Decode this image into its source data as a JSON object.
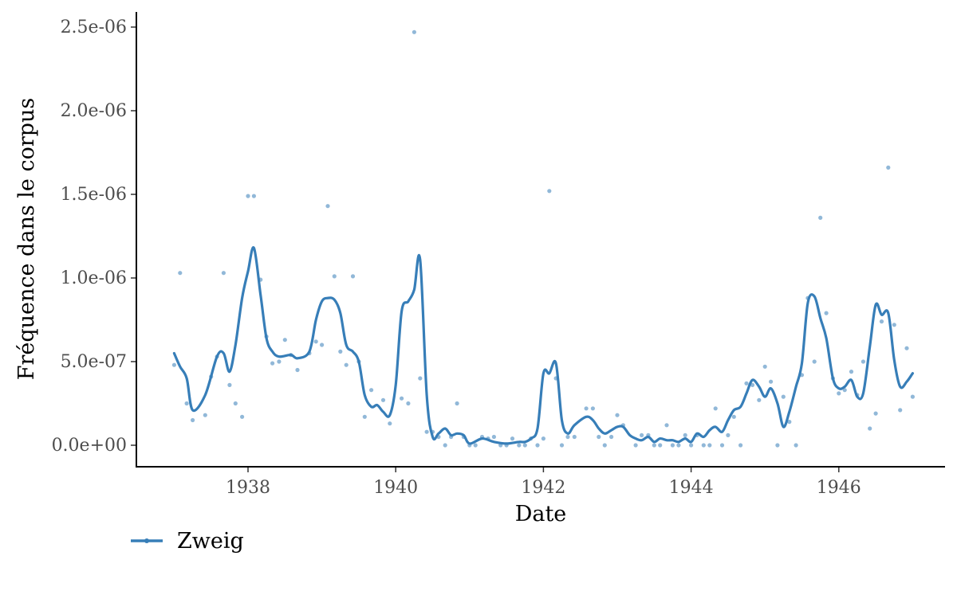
{
  "chart_data": {
    "type": "line",
    "xlabel": "Date",
    "ylabel": "Fréquence dans le corpus",
    "x_ticks": [
      1938,
      1940,
      1942,
      1944,
      1946
    ],
    "y_ticks": [
      0,
      5e-07,
      1e-06,
      1.5e-06,
      2e-06,
      2.5e-06
    ],
    "y_tick_labels": [
      "0.0e+00",
      "5.0e-07",
      "1.0e-06",
      "1.5e-06",
      "2.0e-06",
      "2.5e-06"
    ],
    "xlim": [
      1936.85,
      1947.1
    ],
    "ylim": [
      -1.25e-07,
      2.6e-06
    ],
    "grid": false,
    "legend_position": "bottom-left",
    "series": [
      {
        "name": "Zweig",
        "color": "#377eb8",
        "points": [
          [
            1937.0,
            4.8e-07
          ],
          [
            1937.08,
            1.03e-06
          ],
          [
            1937.17,
            2.5e-07
          ],
          [
            1937.25,
            1.5e-07
          ],
          [
            1937.42,
            1.8e-07
          ],
          [
            1937.5,
            4.1e-07
          ],
          [
            1937.58,
            5.3e-07
          ],
          [
            1937.67,
            1.03e-06
          ],
          [
            1937.75,
            3.6e-07
          ],
          [
            1937.83,
            2.5e-07
          ],
          [
            1937.92,
            1.7e-07
          ],
          [
            1938.0,
            1.49e-06
          ],
          [
            1938.08,
            1.49e-06
          ],
          [
            1938.17,
            9.9e-07
          ],
          [
            1938.25,
            6.5e-07
          ],
          [
            1938.33,
            4.9e-07
          ],
          [
            1938.42,
            5e-07
          ],
          [
            1938.5,
            6.3e-07
          ],
          [
            1938.58,
            5.4e-07
          ],
          [
            1938.67,
            4.5e-07
          ],
          [
            1938.83,
            5.5e-07
          ],
          [
            1938.92,
            6.2e-07
          ],
          [
            1939.0,
            6e-07
          ],
          [
            1939.08,
            1.43e-06
          ],
          [
            1939.17,
            1.01e-06
          ],
          [
            1939.25,
            5.6e-07
          ],
          [
            1939.33,
            4.8e-07
          ],
          [
            1939.42,
            1.01e-06
          ],
          [
            1939.5,
            5e-07
          ],
          [
            1939.58,
            1.7e-07
          ],
          [
            1939.67,
            3.3e-07
          ],
          [
            1939.83,
            2.7e-07
          ],
          [
            1939.92,
            1.3e-07
          ],
          [
            1940.08,
            2.8e-07
          ],
          [
            1940.17,
            2.5e-07
          ],
          [
            1940.25,
            2.47e-06
          ],
          [
            1940.33,
            4e-07
          ],
          [
            1940.42,
            8e-08
          ],
          [
            1940.5,
            8e-08
          ],
          [
            1940.58,
            5e-08
          ],
          [
            1940.67,
            0.0
          ],
          [
            1940.75,
            5e-08
          ],
          [
            1940.83,
            2.5e-07
          ],
          [
            1940.92,
            5e-08
          ],
          [
            1941.0,
            0.0
          ],
          [
            1941.08,
            0.0
          ],
          [
            1941.17,
            5e-08
          ],
          [
            1941.25,
            4e-08
          ],
          [
            1941.33,
            5e-08
          ],
          [
            1941.42,
            0.0
          ],
          [
            1941.5,
            0.0
          ],
          [
            1941.58,
            4e-08
          ],
          [
            1941.67,
            0.0
          ],
          [
            1941.75,
            0.0
          ],
          [
            1941.83,
            4e-08
          ],
          [
            1941.92,
            0.0
          ],
          [
            1942.0,
            4e-08
          ],
          [
            1942.08,
            1.52e-06
          ],
          [
            1942.17,
            4e-07
          ],
          [
            1942.25,
            0.0
          ],
          [
            1942.33,
            5e-08
          ],
          [
            1942.42,
            5e-08
          ],
          [
            1942.58,
            2.2e-07
          ],
          [
            1942.67,
            2.2e-07
          ],
          [
            1942.75,
            5e-08
          ],
          [
            1942.83,
            0.0
          ],
          [
            1942.92,
            5e-08
          ],
          [
            1943.0,
            1.8e-07
          ],
          [
            1943.08,
            1.2e-07
          ],
          [
            1943.25,
            0.0
          ],
          [
            1943.33,
            6e-08
          ],
          [
            1943.42,
            6e-08
          ],
          [
            1943.5,
            0.0
          ],
          [
            1943.58,
            0.0
          ],
          [
            1943.67,
            1.2e-07
          ],
          [
            1943.75,
            0.0
          ],
          [
            1943.83,
            0.0
          ],
          [
            1943.92,
            6e-08
          ],
          [
            1944.0,
            0.0
          ],
          [
            1944.08,
            6e-08
          ],
          [
            1944.17,
            0.0
          ],
          [
            1944.25,
            0.0
          ],
          [
            1944.33,
            2.2e-07
          ],
          [
            1944.42,
            0.0
          ],
          [
            1944.5,
            6e-08
          ],
          [
            1944.58,
            1.7e-07
          ],
          [
            1944.67,
            0.0
          ],
          [
            1944.75,
            3.7e-07
          ],
          [
            1944.83,
            3.6e-07
          ],
          [
            1944.92,
            2.7e-07
          ],
          [
            1945.0,
            4.7e-07
          ],
          [
            1945.08,
            3.8e-07
          ],
          [
            1945.17,
            0.0
          ],
          [
            1945.25,
            2.9e-07
          ],
          [
            1945.33,
            1.4e-07
          ],
          [
            1945.42,
            0.0
          ],
          [
            1945.5,
            4.2e-07
          ],
          [
            1945.58,
            8.8e-07
          ],
          [
            1945.67,
            5e-07
          ],
          [
            1945.75,
            1.36e-06
          ],
          [
            1945.83,
            7.9e-07
          ],
          [
            1945.92,
            4e-07
          ],
          [
            1946.0,
            3.1e-07
          ],
          [
            1946.08,
            3.3e-07
          ],
          [
            1946.17,
            4.4e-07
          ],
          [
            1946.25,
            3e-07
          ],
          [
            1946.33,
            5e-07
          ],
          [
            1946.42,
            1e-07
          ],
          [
            1946.5,
            1.9e-07
          ],
          [
            1946.58,
            7.4e-07
          ],
          [
            1946.67,
            1.66e-06
          ],
          [
            1946.75,
            7.2e-07
          ],
          [
            1946.83,
            2.1e-07
          ],
          [
            1946.92,
            5.8e-07
          ],
          [
            1947.0,
            2.9e-07
          ]
        ],
        "smooth": [
          [
            1937.0,
            5.5e-07
          ],
          [
            1937.08,
            4.7e-07
          ],
          [
            1937.17,
            4e-07
          ],
          [
            1937.25,
            2.1e-07
          ],
          [
            1937.42,
            3e-07
          ],
          [
            1937.58,
            5.3e-07
          ],
          [
            1937.67,
            5.5e-07
          ],
          [
            1937.75,
            4.4e-07
          ],
          [
            1937.83,
            6e-07
          ],
          [
            1937.92,
            8.8e-07
          ],
          [
            1938.0,
            1.04e-06
          ],
          [
            1938.08,
            1.18e-06
          ],
          [
            1938.17,
            9e-07
          ],
          [
            1938.25,
            6.4e-07
          ],
          [
            1938.33,
            5.6e-07
          ],
          [
            1938.42,
            5.3e-07
          ],
          [
            1938.58,
            5.4e-07
          ],
          [
            1938.67,
            5.2e-07
          ],
          [
            1938.83,
            5.6e-07
          ],
          [
            1938.92,
            7.5e-07
          ],
          [
            1939.0,
            8.6e-07
          ],
          [
            1939.08,
            8.8e-07
          ],
          [
            1939.17,
            8.7e-07
          ],
          [
            1939.25,
            7.9e-07
          ],
          [
            1939.33,
            6e-07
          ],
          [
            1939.42,
            5.6e-07
          ],
          [
            1939.5,
            5e-07
          ],
          [
            1939.58,
            3e-07
          ],
          [
            1939.67,
            2.3e-07
          ],
          [
            1939.75,
            2.4e-07
          ],
          [
            1939.83,
            2e-07
          ],
          [
            1939.92,
            1.8e-07
          ],
          [
            1940.0,
            3.6e-07
          ],
          [
            1940.08,
            8e-07
          ],
          [
            1940.17,
            8.6e-07
          ],
          [
            1940.25,
            9.3e-07
          ],
          [
            1940.33,
            1.11e-06
          ],
          [
            1940.42,
            3e-07
          ],
          [
            1940.5,
            5e-08
          ],
          [
            1940.58,
            7e-08
          ],
          [
            1940.67,
            1e-07
          ],
          [
            1940.75,
            6e-08
          ],
          [
            1940.83,
            7e-08
          ],
          [
            1940.92,
            6e-08
          ],
          [
            1941.0,
            1e-08
          ],
          [
            1941.17,
            4e-08
          ],
          [
            1941.33,
            2e-08
          ],
          [
            1941.5,
            1e-08
          ],
          [
            1941.67,
            2e-08
          ],
          [
            1941.75,
            2e-08
          ],
          [
            1941.83,
            4e-08
          ],
          [
            1941.92,
            1e-07
          ],
          [
            1942.0,
            4.3e-07
          ],
          [
            1942.08,
            4.3e-07
          ],
          [
            1942.17,
            4.9e-07
          ],
          [
            1942.25,
            1.5e-07
          ],
          [
            1942.33,
            7e-08
          ],
          [
            1942.42,
            1.2e-07
          ],
          [
            1942.58,
            1.7e-07
          ],
          [
            1942.67,
            1.5e-07
          ],
          [
            1942.75,
            1e-07
          ],
          [
            1942.83,
            7e-08
          ],
          [
            1942.92,
            9e-08
          ],
          [
            1943.0,
            1.1e-07
          ],
          [
            1943.08,
            1.1e-07
          ],
          [
            1943.17,
            6e-08
          ],
          [
            1943.25,
            4e-08
          ],
          [
            1943.33,
            3e-08
          ],
          [
            1943.42,
            5e-08
          ],
          [
            1943.5,
            2e-08
          ],
          [
            1943.58,
            4e-08
          ],
          [
            1943.67,
            3e-08
          ],
          [
            1943.75,
            3e-08
          ],
          [
            1943.83,
            2e-08
          ],
          [
            1943.92,
            4e-08
          ],
          [
            1944.0,
            2e-08
          ],
          [
            1944.08,
            7e-08
          ],
          [
            1944.17,
            5e-08
          ],
          [
            1944.25,
            9e-08
          ],
          [
            1944.33,
            1.1e-07
          ],
          [
            1944.42,
            8e-08
          ],
          [
            1944.5,
            1.5e-07
          ],
          [
            1944.58,
            2.1e-07
          ],
          [
            1944.67,
            2.3e-07
          ],
          [
            1944.75,
            3.1e-07
          ],
          [
            1944.83,
            3.9e-07
          ],
          [
            1944.92,
            3.5e-07
          ],
          [
            1945.0,
            2.9e-07
          ],
          [
            1945.08,
            3.4e-07
          ],
          [
            1945.17,
            2.5e-07
          ],
          [
            1945.25,
            1.1e-07
          ],
          [
            1945.33,
            2e-07
          ],
          [
            1945.42,
            3.5e-07
          ],
          [
            1945.5,
            4.9e-07
          ],
          [
            1945.58,
            8.5e-07
          ],
          [
            1945.67,
            8.9e-07
          ],
          [
            1945.75,
            7.6e-07
          ],
          [
            1945.83,
            6.4e-07
          ],
          [
            1945.92,
            4e-07
          ],
          [
            1946.0,
            3.4e-07
          ],
          [
            1946.08,
            3.5e-07
          ],
          [
            1946.17,
            3.9e-07
          ],
          [
            1946.25,
            2.9e-07
          ],
          [
            1946.33,
            3.1e-07
          ],
          [
            1946.42,
            5.9e-07
          ],
          [
            1946.5,
            8.4e-07
          ],
          [
            1946.58,
            7.8e-07
          ],
          [
            1946.67,
            7.9e-07
          ],
          [
            1946.75,
            5.1e-07
          ],
          [
            1946.83,
            3.5e-07
          ],
          [
            1946.92,
            3.8e-07
          ],
          [
            1947.0,
            4.3e-07
          ]
        ]
      }
    ]
  }
}
